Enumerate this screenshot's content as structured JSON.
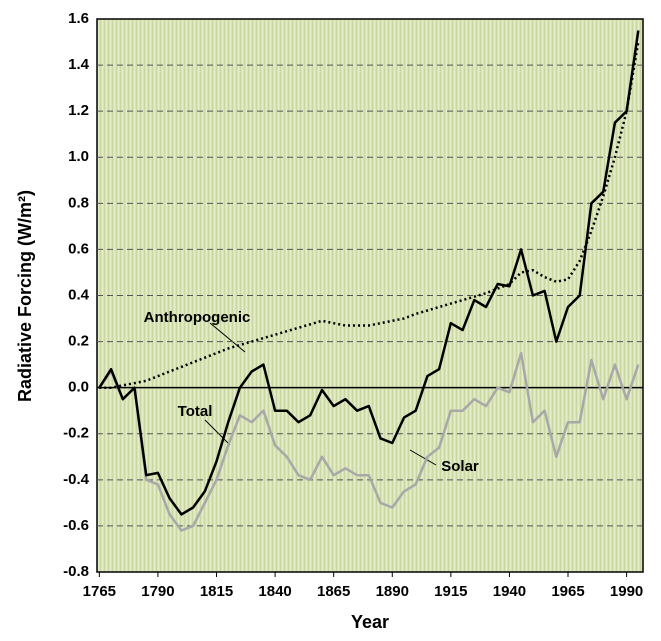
{
  "chart_data": {
    "type": "line",
    "xlabel": "Year",
    "ylabel": "Radiative Forcing (W/m²)",
    "annotations": [
      "Anthropogenic",
      "Total",
      "Solar"
    ],
    "x": [
      1765,
      1770,
      1775,
      1780,
      1785,
      1790,
      1795,
      1800,
      1805,
      1810,
      1815,
      1820,
      1825,
      1830,
      1835,
      1840,
      1845,
      1850,
      1855,
      1860,
      1865,
      1870,
      1875,
      1880,
      1885,
      1890,
      1895,
      1900,
      1905,
      1910,
      1915,
      1920,
      1925,
      1930,
      1935,
      1940,
      1945,
      1950,
      1955,
      1960,
      1965,
      1970,
      1975,
      1980,
      1985,
      1990,
      1995
    ],
    "series": [
      {
        "name": "Total",
        "color": "#000000",
        "style": "solid",
        "values": [
          0.0,
          0.08,
          -0.05,
          0.0,
          -0.38,
          -0.37,
          -0.48,
          -0.55,
          -0.52,
          -0.45,
          -0.32,
          -0.15,
          0.0,
          0.07,
          0.1,
          -0.1,
          -0.1,
          -0.15,
          -0.12,
          -0.01,
          -0.08,
          -0.05,
          -0.1,
          -0.08,
          -0.22,
          -0.24,
          -0.13,
          -0.1,
          0.05,
          0.08,
          0.28,
          0.25,
          0.38,
          0.35,
          0.45,
          0.44,
          0.6,
          0.4,
          0.42,
          0.2,
          0.35,
          0.4,
          0.8,
          0.85,
          1.15,
          1.2,
          1.55
        ]
      },
      {
        "name": "Anthropogenic",
        "color": "#000000",
        "style": "dotted",
        "values": [
          0.0,
          0.0,
          0.01,
          0.02,
          0.03,
          0.05,
          0.07,
          0.09,
          0.11,
          0.13,
          0.15,
          0.17,
          0.185,
          0.2,
          0.215,
          0.23,
          0.245,
          0.26,
          0.275,
          0.29,
          0.28,
          0.27,
          0.27,
          0.27,
          0.28,
          0.29,
          0.3,
          0.32,
          0.335,
          0.35,
          0.365,
          0.38,
          0.395,
          0.41,
          0.43,
          0.45,
          0.5,
          0.51,
          0.48,
          0.46,
          0.47,
          0.55,
          0.68,
          0.83,
          1.0,
          1.2,
          1.5
        ]
      },
      {
        "name": "Solar",
        "color": "#a8a8a8",
        "style": "solid",
        "values": [
          0.0,
          0.07,
          -0.05,
          0.0,
          -0.4,
          -0.42,
          -0.55,
          -0.62,
          -0.6,
          -0.5,
          -0.4,
          -0.25,
          -0.12,
          -0.15,
          -0.1,
          -0.25,
          -0.3,
          -0.38,
          -0.4,
          -0.3,
          -0.38,
          -0.35,
          -0.38,
          -0.38,
          -0.5,
          -0.52,
          -0.45,
          -0.42,
          -0.3,
          -0.26,
          -0.1,
          -0.1,
          -0.05,
          -0.08,
          0.0,
          -0.02,
          0.15,
          -0.15,
          -0.1,
          -0.3,
          -0.15,
          -0.15,
          0.12,
          -0.05,
          0.1,
          -0.05,
          0.1
        ]
      }
    ],
    "xlim": [
      1764,
      1997
    ],
    "xticks": [
      1765,
      1790,
      1815,
      1840,
      1865,
      1890,
      1915,
      1940,
      1965,
      1990
    ],
    "ylim": [
      -0.8,
      1.6
    ],
    "yticks": [
      {
        "value": -0.8,
        "label": "-0.8"
      },
      {
        "value": -0.6,
        "label": "-0.6"
      },
      {
        "value": -0.4,
        "label": "-0.4"
      },
      {
        "value": -0.2,
        "label": "-0.2"
      },
      {
        "value": 0.0,
        "label": "0.0"
      },
      {
        "value": 0.2,
        "label": "0.2"
      },
      {
        "value": 0.4,
        "label": "0.4"
      },
      {
        "value": 0.6,
        "label": "0.6"
      },
      {
        "value": 0.8,
        "label": "0.8"
      },
      {
        "value": 1.0,
        "label": "1.0"
      },
      {
        "value": 1.2,
        "label": "1.2"
      },
      {
        "value": 1.4,
        "label": "1.4"
      },
      {
        "value": 1.6,
        "label": "1.6"
      }
    ],
    "grid": true
  }
}
